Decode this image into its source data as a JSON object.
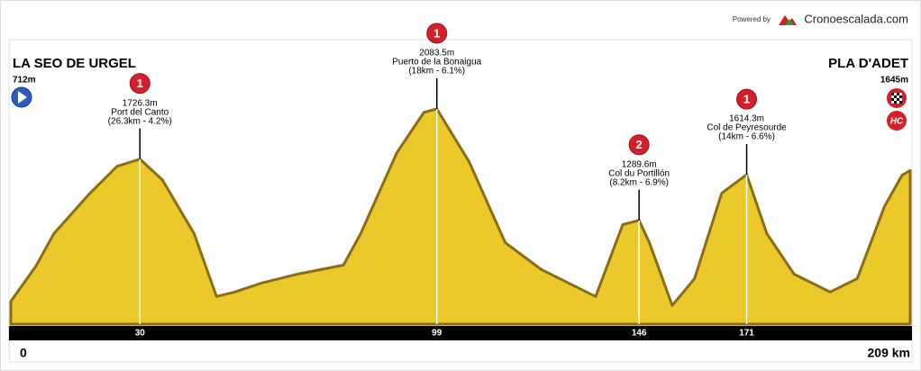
{
  "chart_data": {
    "type": "area",
    "credit": "Powered by",
    "brand": "Cronoescalada.com",
    "start": {
      "name": "LA SEO DE URGEL",
      "altitude_label": "712m"
    },
    "finish": {
      "name": "PLA D'ADET",
      "altitude_label": "1645m",
      "category": "HC"
    },
    "x": [
      0,
      5.9,
      10,
      18.4,
      24.7,
      30,
      35.2,
      42.6,
      47.8,
      52,
      58.3,
      66.7,
      77.3,
      81.3,
      89.7,
      96,
      99,
      106.5,
      114.9,
      123.3,
      131.7,
      135.9,
      142.2,
      146,
      148.4,
      153.7,
      158.9,
      165.2,
      169.4,
      171,
      175.7,
      182,
      190.4,
      196.7,
      203,
      207.1,
      209
    ],
    "values": [
      712,
      967,
      1195,
      1483,
      1675,
      1726.3,
      1579,
      1195,
      747,
      779,
      843,
      907,
      971,
      1195,
      1771,
      2059,
      2083.5,
      1707,
      1131,
      939,
      811,
      747,
      1259,
      1289.6,
      1131,
      683,
      875,
      1483,
      1579,
      1614.3,
      1195,
      907,
      779,
      875,
      1387,
      1611,
      1645
    ],
    "color": "#ecc92a",
    "edge_color": "#8a6d14",
    "xlim": [
      0,
      209
    ],
    "ylim": [
      550,
      2250
    ],
    "xticks": [
      0,
      30,
      99,
      146,
      171,
      {
        "value": 209,
        "label": "209 km"
      }
    ],
    "climbs": [
      {
        "km": 30,
        "altitude": 1726.3,
        "altitude_label": "1726.3m",
        "name": "Port del Canto",
        "detail": "(26.3km - 4.2%)",
        "category": "1"
      },
      {
        "km": 99,
        "altitude": 2083.5,
        "altitude_label": "2083.5m",
        "name": "Puerto de la Bonaigua",
        "detail": "(18km - 6.1%)",
        "category": "1"
      },
      {
        "km": 146,
        "altitude": 1289.6,
        "altitude_label": "1289.6m",
        "name": "Col du Portillón",
        "detail": "(8.2km - 6.9%)",
        "category": "2"
      },
      {
        "km": 171,
        "altitude": 1614.3,
        "altitude_label": "1614.3m",
        "name": "Col de Peyresourde",
        "detail": "(14km - 6.6%)",
        "category": "1"
      }
    ]
  }
}
